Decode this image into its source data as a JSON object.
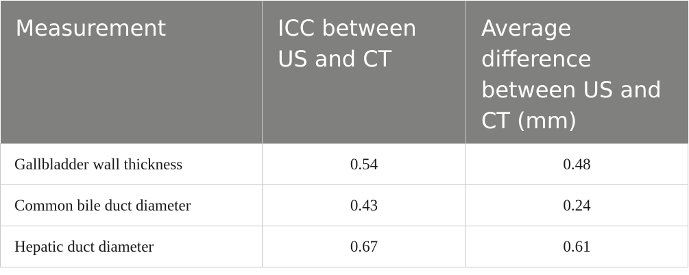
{
  "table": {
    "header": [
      "Measurement",
      "ICC between US and CT",
      "Average difference between US and CT (mm)"
    ],
    "rows": [
      [
        "Gallbladder wall thickness",
        "0.54",
        "0.48"
      ],
      [
        "Common bile duct diameter",
        "0.43",
        "0.24"
      ],
      [
        "Hepatic duct diameter",
        "0.67",
        "0.61"
      ]
    ]
  }
}
